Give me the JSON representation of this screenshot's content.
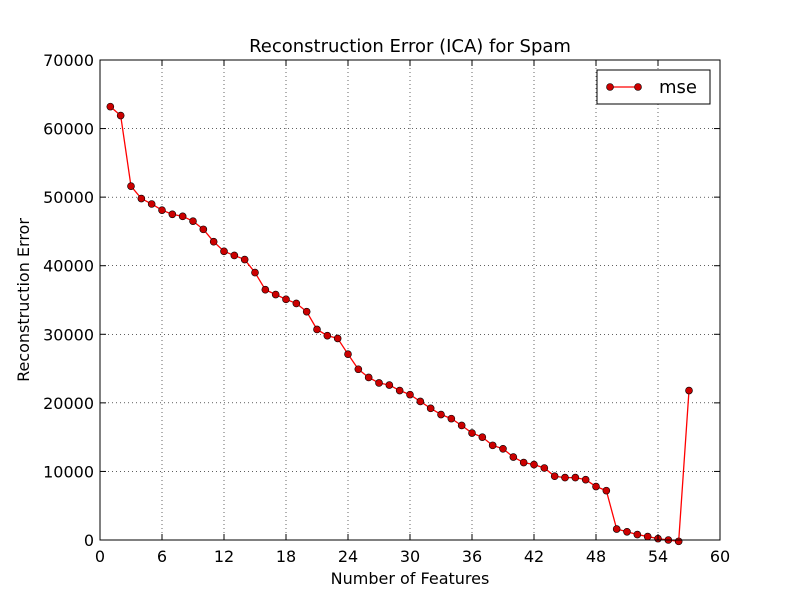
{
  "chart_data": {
    "type": "line",
    "title": "Reconstruction Error (ICA) for Spam",
    "xlabel": "Number of Features",
    "ylabel": "Reconstruction Error",
    "xlim": [
      0,
      60
    ],
    "ylim": [
      0,
      70000
    ],
    "xticks": [
      0,
      6,
      12,
      18,
      24,
      30,
      36,
      42,
      48,
      54,
      60
    ],
    "yticks": [
      0,
      10000,
      20000,
      30000,
      40000,
      50000,
      60000,
      70000
    ],
    "grid": true,
    "legend_position": "top-right",
    "series": [
      {
        "name": "mse",
        "color": "#ff0000",
        "marker_color": "#cc0000",
        "x": [
          1,
          2,
          3,
          4,
          5,
          6,
          7,
          8,
          9,
          10,
          11,
          12,
          13,
          14,
          15,
          16,
          17,
          18,
          19,
          20,
          21,
          22,
          23,
          24,
          25,
          26,
          27,
          28,
          29,
          30,
          31,
          32,
          33,
          34,
          35,
          36,
          37,
          38,
          39,
          40,
          41,
          42,
          43,
          44,
          45,
          46,
          47,
          48,
          49,
          50,
          51,
          52,
          53,
          54,
          55,
          56,
          57
        ],
        "y": [
          63200,
          61900,
          51600,
          49800,
          49000,
          48100,
          47500,
          47200,
          46500,
          45300,
          43500,
          42100,
          41500,
          40900,
          39000,
          36500,
          35800,
          35100,
          34500,
          33300,
          30700,
          29800,
          29400,
          27100,
          24900,
          23700,
          22900,
          22600,
          21800,
          21200,
          20200,
          19200,
          18300,
          17700,
          16700,
          15600,
          15000,
          13800,
          13300,
          12100,
          11300,
          11000,
          10500,
          9300,
          9100,
          9100,
          8800,
          7800,
          7200,
          1600,
          1200,
          800,
          500,
          200,
          0,
          -200,
          21800
        ]
      }
    ]
  }
}
